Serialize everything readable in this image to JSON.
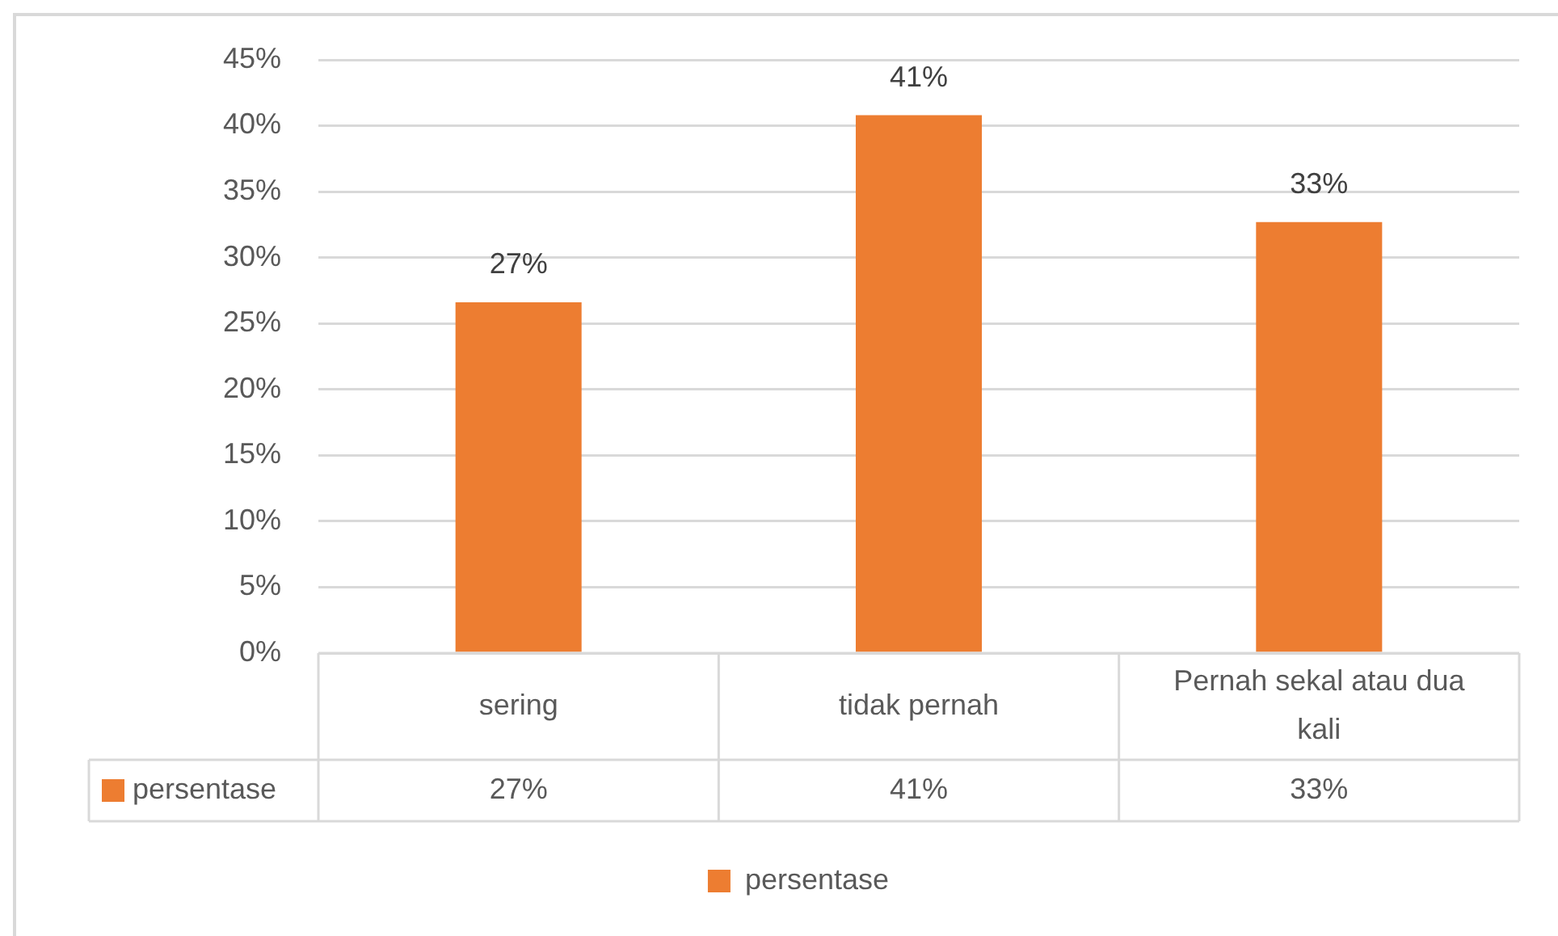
{
  "chart_data": {
    "type": "bar",
    "categories": [
      "sering",
      "tidak pernah",
      "Pernah sekal atau dua kali"
    ],
    "series": [
      {
        "name": "persentase",
        "color": "#ed7d31",
        "values": [
          26.6,
          40.8,
          32.7
        ],
        "value_labels": [
          "27%",
          "41%",
          "33%"
        ]
      }
    ],
    "ylim": [
      0,
      45
    ],
    "yticks": [
      {
        "value": 0,
        "label": "0%"
      },
      {
        "value": 5,
        "label": "5%"
      },
      {
        "value": 10,
        "label": "10%"
      },
      {
        "value": 15,
        "label": "15%"
      },
      {
        "value": 20,
        "label": "20%"
      },
      {
        "value": 25,
        "label": "25%"
      },
      {
        "value": 30,
        "label": "30%"
      },
      {
        "value": 35,
        "label": "35%"
      },
      {
        "value": 40,
        "label": "40%"
      },
      {
        "value": 45,
        "label": "45%"
      }
    ],
    "grid": "y",
    "legend": "bottom"
  }
}
